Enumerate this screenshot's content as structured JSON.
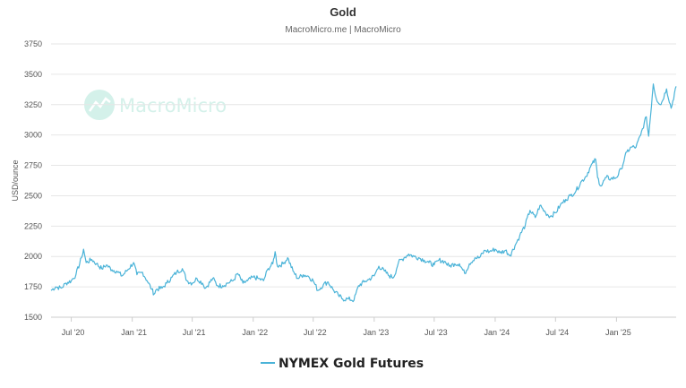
{
  "chart_data": {
    "type": "line",
    "title": "Gold",
    "subtitle": "MacroMicro.me | MacroMicro",
    "ylabel": "USD/ounce",
    "ylim": [
      1500,
      3750
    ],
    "yticks": [
      "1500",
      "1750",
      "2000",
      "2250",
      "2500",
      "2750",
      "3000",
      "3250",
      "3500",
      "3750"
    ],
    "xticks": [
      "Jul '20",
      "Jan '21",
      "Jul '21",
      "Jan '22",
      "Jul '22",
      "Jan '23",
      "Jul '23",
      "Jan '24",
      "Jul '24",
      "Jan '25"
    ],
    "grid": "horizontal",
    "legend_position": "bottom-center",
    "watermark": "MacroMicro",
    "colors": {
      "series": "#4ab3d8",
      "grid": "#e6e6e6",
      "watermark": "#d4f1ea"
    },
    "series": [
      {
        "name": "NYMEX Gold Futures",
        "x": [
          "2020-05-01",
          "2020-05-15",
          "2020-06-01",
          "2020-06-15",
          "2020-07-01",
          "2020-07-15",
          "2020-08-01",
          "2020-08-07",
          "2020-08-15",
          "2020-09-01",
          "2020-09-15",
          "2020-10-01",
          "2020-10-15",
          "2020-11-01",
          "2020-11-15",
          "2020-12-01",
          "2020-12-15",
          "2021-01-05",
          "2021-01-15",
          "2021-02-01",
          "2021-02-15",
          "2021-03-01",
          "2021-03-08",
          "2021-03-15",
          "2021-04-01",
          "2021-04-15",
          "2021-05-01",
          "2021-05-15",
          "2021-06-01",
          "2021-06-15",
          "2021-07-01",
          "2021-07-15",
          "2021-08-01",
          "2021-08-10",
          "2021-09-01",
          "2021-09-15",
          "2021-10-01",
          "2021-10-15",
          "2021-11-01",
          "2021-11-15",
          "2021-12-01",
          "2021-12-15",
          "2022-01-01",
          "2022-01-15",
          "2022-02-01",
          "2022-02-15",
          "2022-03-01",
          "2022-03-08",
          "2022-03-15",
          "2022-04-01",
          "2022-04-15",
          "2022-05-01",
          "2022-05-15",
          "2022-06-01",
          "2022-06-15",
          "2022-07-01",
          "2022-07-15",
          "2022-08-01",
          "2022-08-15",
          "2022-09-01",
          "2022-09-15",
          "2022-09-28",
          "2022-10-15",
          "2022-11-01",
          "2022-11-15",
          "2022-12-01",
          "2022-12-15",
          "2023-01-01",
          "2023-01-15",
          "2023-02-01",
          "2023-02-15",
          "2023-03-01",
          "2023-03-15",
          "2023-04-01",
          "2023-04-15",
          "2023-05-01",
          "2023-05-15",
          "2023-06-01",
          "2023-06-15",
          "2023-07-01",
          "2023-07-15",
          "2023-08-01",
          "2023-08-15",
          "2023-09-01",
          "2023-09-15",
          "2023-10-01",
          "2023-10-15",
          "2023-11-01",
          "2023-11-15",
          "2023-12-01",
          "2023-12-15",
          "2024-01-01",
          "2024-01-15",
          "2024-02-01",
          "2024-02-15",
          "2024-03-01",
          "2024-03-15",
          "2024-04-01",
          "2024-04-15",
          "2024-05-01",
          "2024-05-15",
          "2024-06-01",
          "2024-06-15",
          "2024-07-01",
          "2024-07-15",
          "2024-08-01",
          "2024-08-15",
          "2024-09-01",
          "2024-09-15",
          "2024-10-01",
          "2024-10-15",
          "2024-10-30",
          "2024-11-05",
          "2024-11-15",
          "2024-12-01",
          "2024-12-15",
          "2025-01-01",
          "2025-01-15",
          "2025-02-01",
          "2025-02-15",
          "2025-03-01",
          "2025-03-15",
          "2025-04-01",
          "2025-04-08",
          "2025-04-22",
          "2025-05-01",
          "2025-05-15",
          "2025-06-01",
          "2025-06-15",
          "2025-06-30"
        ],
        "values": [
          1720,
          1750,
          1740,
          1780,
          1800,
          1850,
          1990,
          2060,
          1950,
          1975,
          1940,
          1900,
          1930,
          1890,
          1880,
          1840,
          1880,
          1950,
          1850,
          1870,
          1800,
          1730,
          1690,
          1730,
          1740,
          1780,
          1830,
          1870,
          1900,
          1800,
          1780,
          1820,
          1780,
          1740,
          1820,
          1760,
          1760,
          1780,
          1800,
          1860,
          1780,
          1800,
          1830,
          1820,
          1800,
          1900,
          1940,
          2040,
          1920,
          1940,
          1990,
          1880,
          1820,
          1850,
          1840,
          1800,
          1720,
          1770,
          1790,
          1720,
          1680,
          1650,
          1650,
          1640,
          1760,
          1790,
          1810,
          1840,
          1920,
          1880,
          1840,
          1830,
          1950,
          1990,
          2020,
          2000,
          1990,
          1970,
          1950,
          1930,
          1970,
          1960,
          1920,
          1940,
          1940,
          1860,
          1940,
          1990,
          1990,
          2050,
          2040,
          2060,
          2030,
          2050,
          2010,
          2090,
          2170,
          2260,
          2380,
          2320,
          2420,
          2360,
          2330,
          2360,
          2420,
          2470,
          2500,
          2540,
          2610,
          2660,
          2740,
          2800,
          2650,
          2580,
          2650,
          2640,
          2650,
          2720,
          2860,
          2900,
          2900,
          3000,
          3150,
          2990,
          3420,
          3300,
          3250,
          3380,
          3220,
          3400
        ]
      }
    ]
  }
}
